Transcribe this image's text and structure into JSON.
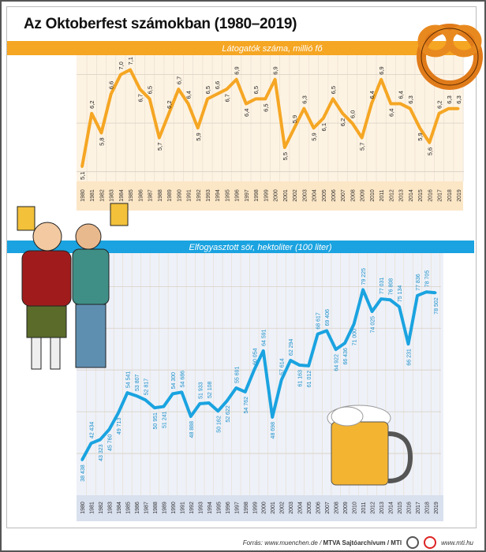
{
  "title": "Az Oktoberfest számokban (1980–2019)",
  "footer": {
    "source": "Forrás: www.muenchen.de / ",
    "agency": "MTVA Sajtóarchívum / MTI",
    "url": "www.mti.hu"
  },
  "colors": {
    "visitors": "#f5a623",
    "beer": "#1aa3e0",
    "visitors_bg": "#fdf3e3",
    "beer_bg": "#eef1f8"
  },
  "chart_data": [
    {
      "type": "line",
      "title": "Látogatók száma, millió fő",
      "x": [
        1980,
        1981,
        1982,
        1983,
        1984,
        1985,
        1986,
        1987,
        1988,
        1989,
        1990,
        1991,
        1992,
        1993,
        1994,
        1995,
        1996,
        1997,
        1998,
        1999,
        2000,
        2001,
        2002,
        2003,
        2004,
        2005,
        2006,
        2007,
        2008,
        2009,
        2010,
        2011,
        2012,
        2013,
        2014,
        2015,
        2016,
        2017,
        2018,
        2019
      ],
      "values": [
        5.1,
        6.2,
        5.8,
        6.6,
        7.0,
        7.1,
        6.7,
        6.5,
        5.7,
        6.2,
        6.7,
        6.4,
        5.9,
        6.5,
        6.6,
        6.7,
        6.9,
        6.4,
        6.5,
        6.5,
        6.9,
        5.5,
        5.9,
        6.3,
        5.9,
        6.1,
        6.5,
        6.2,
        6.0,
        5.7,
        6.4,
        6.9,
        6.4,
        6.4,
        6.3,
        5.9,
        5.6,
        6.2,
        6.3,
        6.3
      ],
      "labels": [
        "5,1",
        "6,2",
        "5,8",
        "6,6",
        "7,0",
        "7,1",
        "6,7",
        "6,5",
        "5,7",
        "6,2",
        "6,7",
        "6,4",
        "5,9",
        "6,5",
        "6,6",
        "6,7",
        "6,9",
        "6,4",
        "6,5",
        "6,5",
        "6,9",
        "5,5",
        "5,9",
        "6,3",
        "5,9",
        "6,1",
        "6,5",
        "6,2",
        "6,0",
        "5,7",
        "6,4",
        "6,9",
        "6,4",
        "6,4",
        "6,3",
        "5,9",
        "5,6",
        "6,2",
        "6,3",
        "6,3"
      ],
      "ylim": [
        4.8,
        7.4
      ],
      "grid": true
    },
    {
      "type": "line",
      "title": "Elfogyasztott sör, hektoliter (100 liter)",
      "x": [
        1980,
        1981,
        1982,
        1983,
        1984,
        1985,
        1986,
        1987,
        1988,
        1989,
        1990,
        1991,
        1992,
        1993,
        1994,
        1995,
        1996,
        1997,
        1998,
        1999,
        2000,
        2001,
        2002,
        2003,
        2004,
        2005,
        2006,
        2007,
        2008,
        2009,
        2010,
        2011,
        2012,
        2013,
        2014,
        2015,
        2016,
        2017,
        2018,
        2019
      ],
      "values": [
        38438,
        42434,
        43323,
        45760,
        49713,
        54541,
        53807,
        52817,
        50951,
        51241,
        54300,
        54686,
        48888,
        51933,
        52108,
        50162,
        52622,
        55691,
        54762,
        60054,
        64591,
        48698,
        57614,
        62294,
        61163,
        61012,
        68617,
        69406,
        64922,
        66436,
        71000,
        79225,
        74025,
        77031,
        76808,
        75134,
        66231,
        77836,
        78705,
        78502
      ],
      "labels": [
        "38 438",
        "42 434",
        "43 323",
        "45 760",
        "49 713",
        "54 541",
        "53 807",
        "52 817",
        "50 951",
        "51 241",
        "54 300",
        "54 686",
        "48 888",
        "51 933",
        "52 108",
        "50 162",
        "52 622",
        "55 691",
        "54 762",
        "60 054",
        "64 591",
        "48 698",
        "57 614",
        "62 294",
        "61 163",
        "61 012",
        "68 617",
        "69 406",
        "64 922",
        "66 436",
        "71 000",
        "79 225",
        "74 025",
        "77 031",
        "76 808",
        "75 134",
        "66 231",
        "77 836",
        "78 705",
        "78 502"
      ],
      "ylim": [
        30000,
        88000
      ],
      "grid": true
    }
  ]
}
